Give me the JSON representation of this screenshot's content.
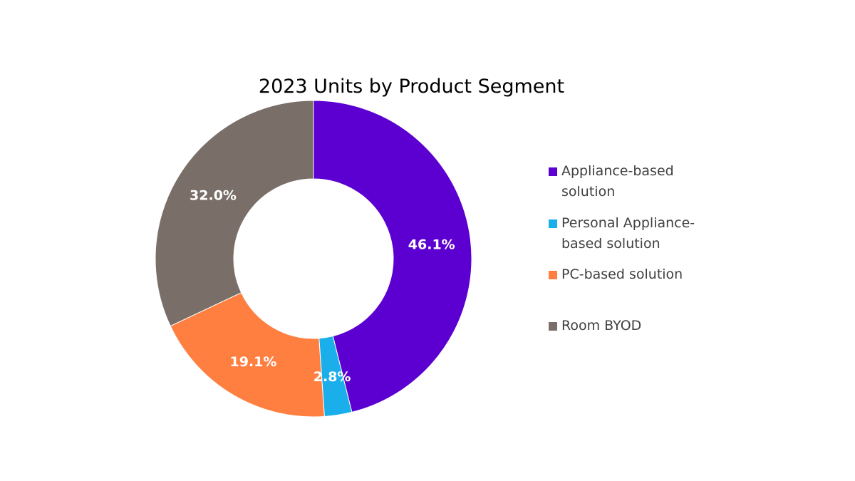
{
  "chart_data": {
    "type": "pie",
    "title": "2023 Units by Product Segment",
    "categories": [
      "Appliance-based solution",
      "Personal Appliance-based solution",
      "PC-based solution",
      "Room BYOD"
    ],
    "values": [
      46.1,
      2.8,
      19.1,
      32.0
    ],
    "labels": [
      "46.1%",
      "2.8%",
      "19.1%",
      "32.0%"
    ],
    "colors": [
      "#5B00D1",
      "#1AAFEA",
      "#FF7F40",
      "#7A6E69"
    ],
    "donut": true,
    "legend_position": "right",
    "legend_lines": [
      [
        "Appliance-based",
        "solution"
      ],
      [
        "Personal Appliance-",
        "based solution"
      ],
      [
        "PC-based solution"
      ],
      [
        "Room BYOD"
      ]
    ]
  }
}
